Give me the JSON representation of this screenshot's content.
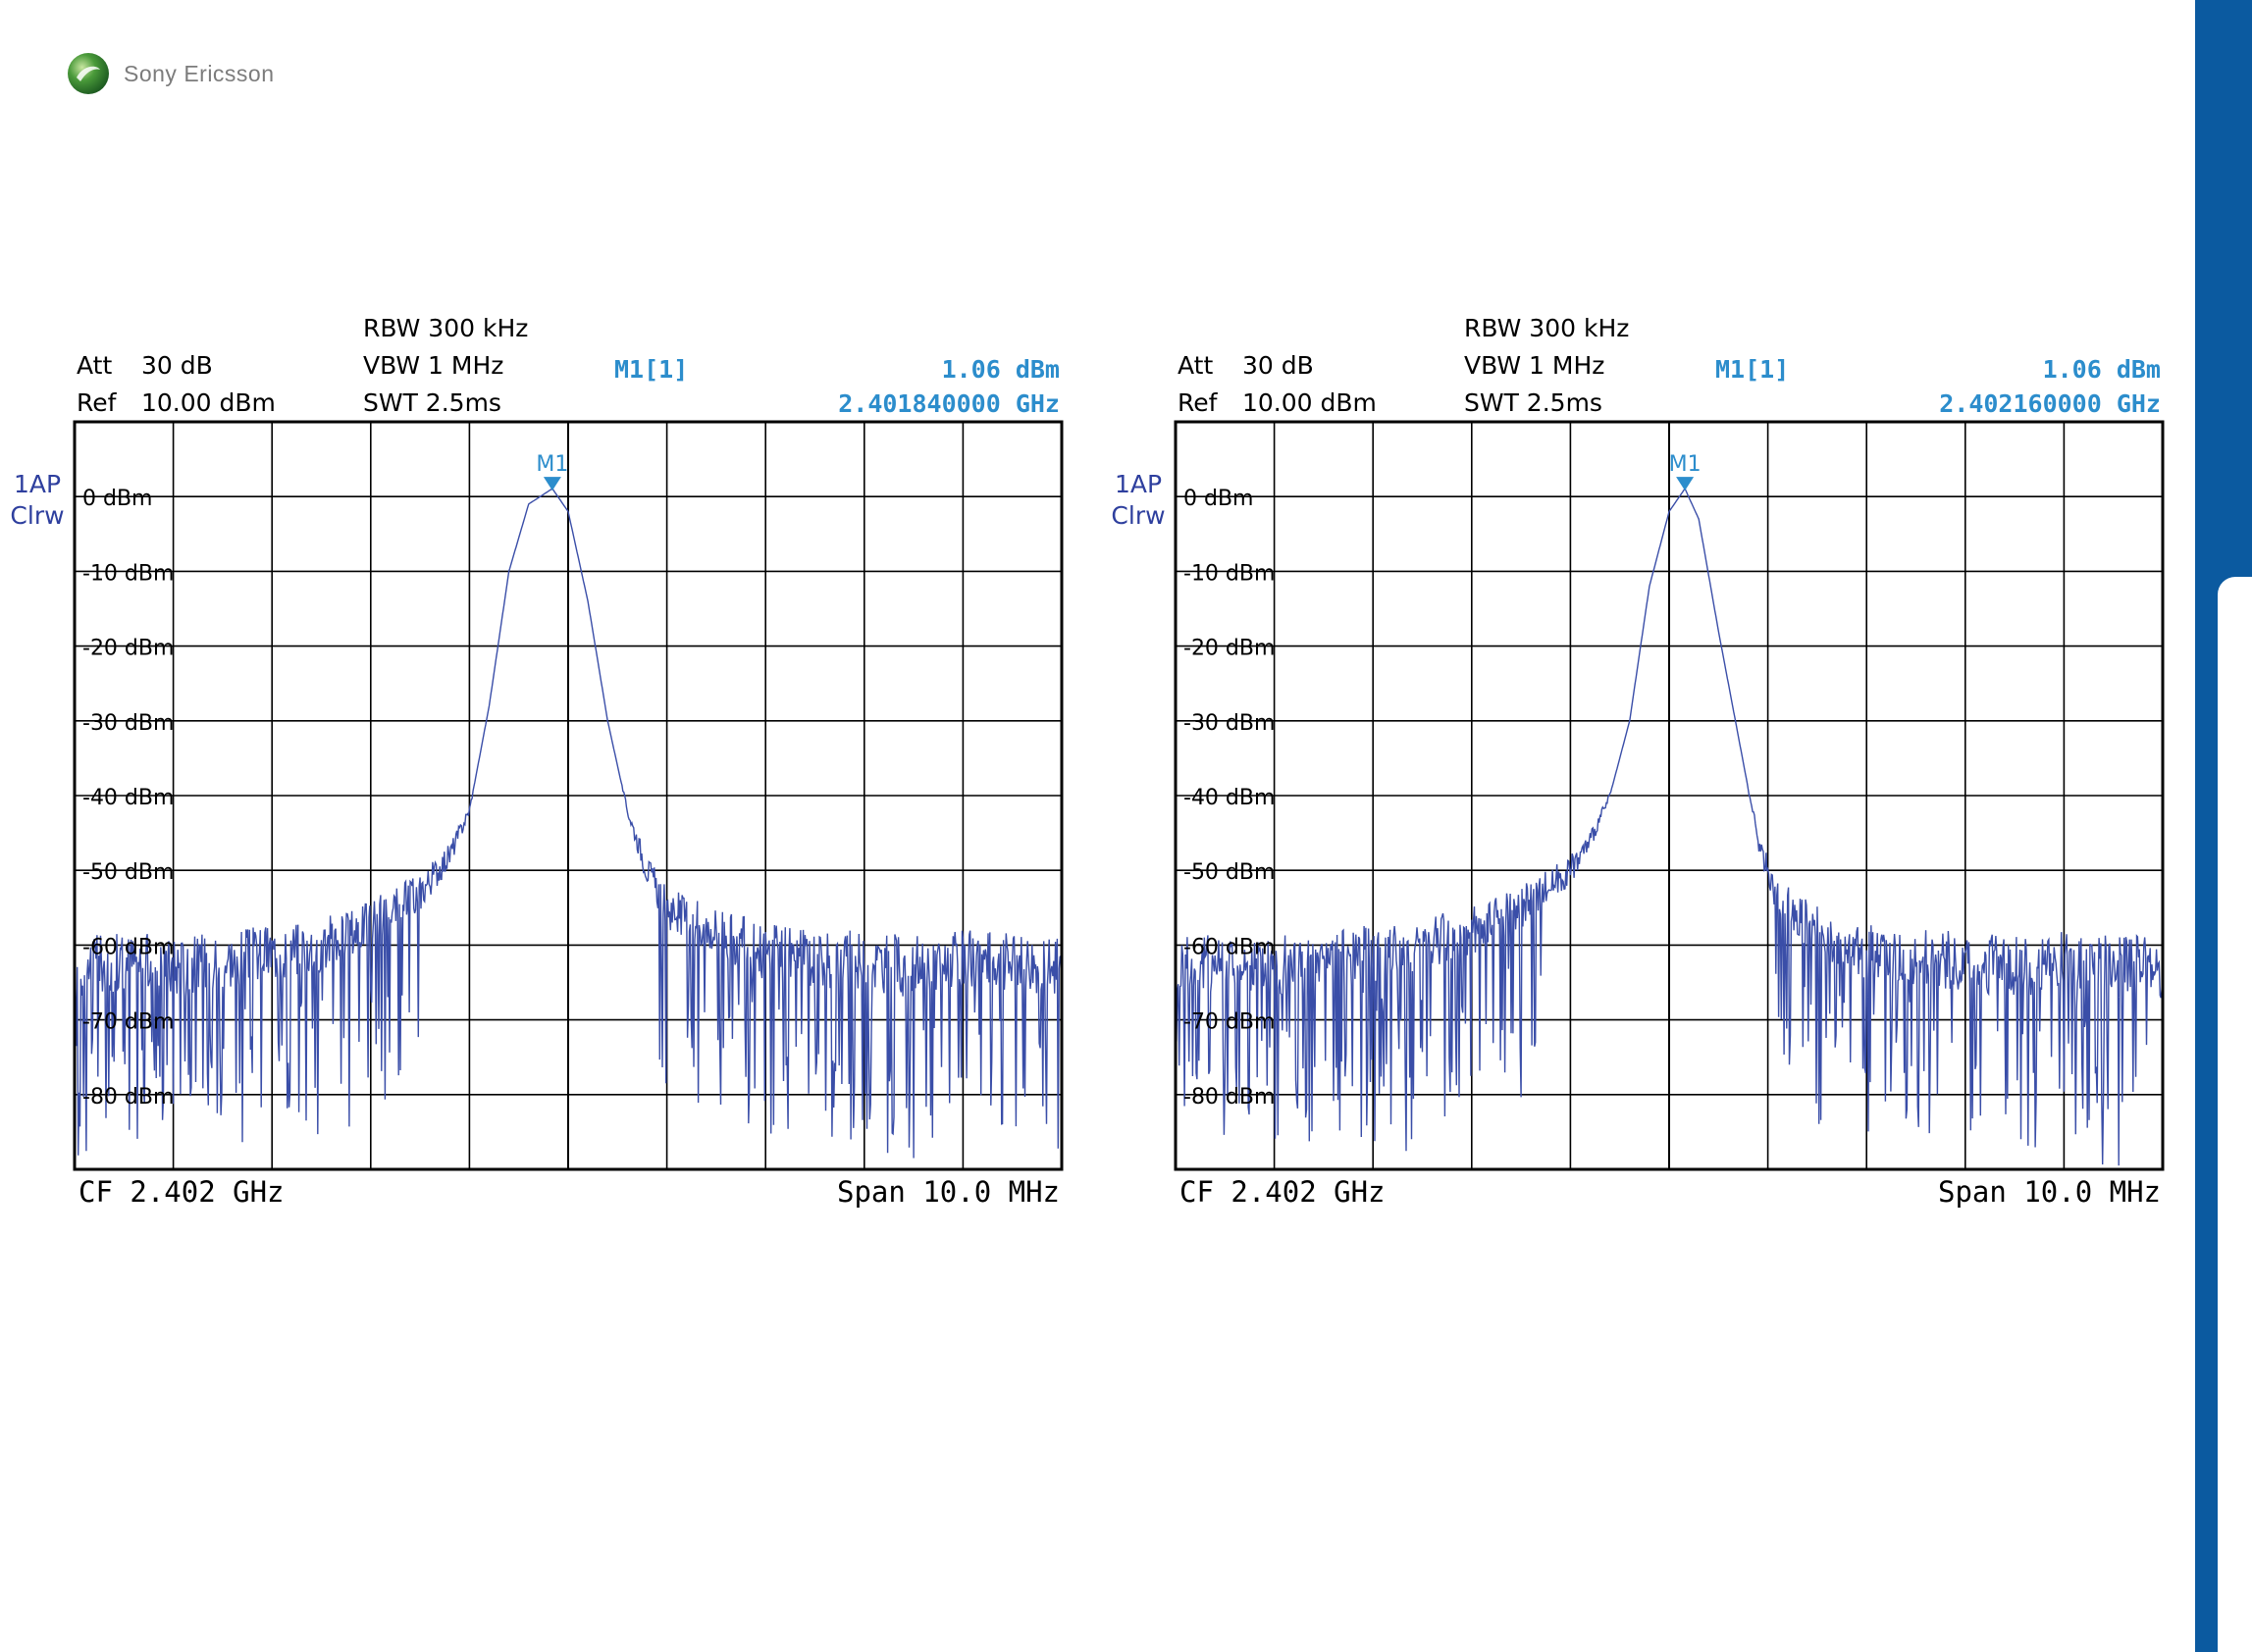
{
  "branding": {
    "logo_text": "Sony Ericsson"
  },
  "colors": {
    "trace": "#3a4ea8",
    "marker": "#2c8dcc",
    "label_blue": "#2e3f9e",
    "accent_bar": "#0b5aa0"
  },
  "chart_data": [
    {
      "type": "line",
      "settings": {
        "rbw": "RBW 300 kHz",
        "vbw": "VBW 1 MHz",
        "swt": "SWT 2.5ms",
        "att_label": "Att",
        "att_value": "30 dB",
        "ref_label": "Ref",
        "ref_value": "10.00 dBm"
      },
      "trace_label": {
        "line1": "1AP",
        "line2": "Clrw"
      },
      "marker": {
        "name": "M1",
        "readout_label": "M1[1]",
        "level": "1.06 dBm",
        "frequency": "2.401840000 GHz",
        "x_mhz": 2401.84,
        "y_dbm": 1.06
      },
      "footer": {
        "left": "CF 2.402 GHz",
        "right": "Span 10.0 MHz"
      },
      "y_tick_labels": [
        "0 dBm",
        "-10 dBm",
        "-20 dBm",
        "-30 dBm",
        "-40 dBm",
        "-50 dBm",
        "-60 dBm",
        "-70 dBm",
        "-80 dBm"
      ],
      "ylim": [
        -90,
        10
      ],
      "xlim": [
        2397.0,
        2407.0
      ],
      "x_divisions": 10,
      "series": [
        {
          "x": [
            2397.0,
            2397.5,
            2398.0,
            2398.5,
            2399.0,
            2399.5,
            2400.0,
            2400.5,
            2400.8,
            2401.0,
            2401.2,
            2401.4,
            2401.6,
            2401.84,
            2402.0,
            2402.2,
            2402.4,
            2402.6,
            2402.8,
            2403.0,
            2403.5,
            2404.0,
            2404.5,
            2405.0,
            2405.5,
            2406.0,
            2406.5,
            2407.0
          ],
          "y": [
            -63,
            -62,
            -63,
            -62,
            -61,
            -60,
            -57,
            -53,
            -48,
            -42,
            -28,
            -10,
            -1,
            1.06,
            -2,
            -14,
            -30,
            -42,
            -50,
            -55,
            -58,
            -61,
            -62,
            -62,
            -63,
            -62,
            -62,
            -63
          ]
        }
      ],
      "noise_floor_dbm": -62
    },
    {
      "type": "line",
      "settings": {
        "rbw": "RBW 300 kHz",
        "vbw": "VBW 1 MHz",
        "swt": "SWT 2.5ms",
        "att_label": "Att",
        "att_value": "30 dB",
        "ref_label": "Ref",
        "ref_value": "10.00 dBm"
      },
      "trace_label": {
        "line1": "1AP",
        "line2": "Clrw"
      },
      "marker": {
        "name": "M1",
        "readout_label": "M1[1]",
        "level": "1.06 dBm",
        "frequency": "2.402160000 GHz",
        "x_mhz": 2402.16,
        "y_dbm": 1.06
      },
      "footer": {
        "left": "CF 2.402 GHz",
        "right": "Span 10.0 MHz"
      },
      "y_tick_labels": [
        "0 dBm",
        "-10 dBm",
        "-20 dBm",
        "-30 dBm",
        "-40 dBm",
        "-50 dBm",
        "-60 dBm",
        "-70 dBm",
        "-80 dBm"
      ],
      "ylim": [
        -90,
        10
      ],
      "xlim": [
        2397.0,
        2407.0
      ],
      "x_divisions": 10,
      "series": [
        {
          "x": [
            2397.0,
            2397.5,
            2398.0,
            2398.5,
            2399.0,
            2399.5,
            2400.0,
            2400.5,
            2401.0,
            2401.2,
            2401.4,
            2401.6,
            2401.8,
            2402.0,
            2402.16,
            2402.3,
            2402.5,
            2402.7,
            2402.9,
            2403.1,
            2403.5,
            2404.0,
            2404.5,
            2405.0,
            2405.5,
            2406.0,
            2406.5,
            2407.0
          ],
          "y": [
            -63,
            -62,
            -63,
            -62,
            -61,
            -60,
            -58,
            -55,
            -50,
            -46,
            -40,
            -30,
            -12,
            -2,
            1.06,
            -3,
            -18,
            -32,
            -46,
            -54,
            -58,
            -61,
            -62,
            -62,
            -63,
            -62,
            -62,
            -63
          ]
        }
      ],
      "noise_floor_dbm": -62
    }
  ]
}
